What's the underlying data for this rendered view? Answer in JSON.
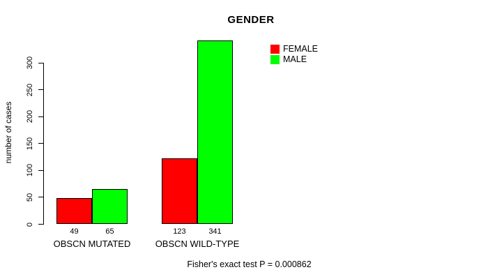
{
  "chart_data": {
    "type": "bar",
    "title": "GENDER",
    "ylabel": "number of cases",
    "xlabel": "",
    "ylim": [
      0,
      300
    ],
    "yticks": [
      0,
      50,
      100,
      150,
      200,
      250,
      300
    ],
    "grid": false,
    "legend_position": "top-right",
    "categories": [
      "OBSCN MUTATED",
      "OBSCN WILD-TYPE"
    ],
    "series": [
      {
        "name": "FEMALE",
        "color": "#FF0000",
        "values": [
          49,
          123
        ]
      },
      {
        "name": "MALE",
        "color": "#00FF00",
        "values": [
          65,
          341
        ]
      }
    ],
    "bar_value_labels": [
      49,
      65,
      123,
      341
    ],
    "annotation": "Fisher's exact test P = 0.000862"
  }
}
